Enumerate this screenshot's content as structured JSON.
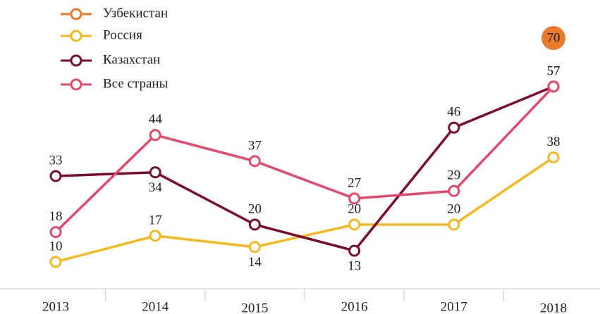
{
  "chart_data": {
    "type": "line",
    "categories": [
      "2013",
      "2014",
      "2015",
      "2016",
      "2017",
      "2018"
    ],
    "series": [
      {
        "name": "Узбекистан",
        "color": "#ec7a2c",
        "values": [
          null,
          null,
          null,
          null,
          null,
          70
        ]
      },
      {
        "name": "Россия",
        "color": "#f5b91e",
        "values": [
          10,
          17,
          14,
          20,
          20,
          38
        ]
      },
      {
        "name": "Казахстан",
        "color": "#7b0d2b",
        "values": [
          33,
          34,
          20,
          13,
          46,
          57
        ]
      },
      {
        "name": "Все страны",
        "color": "#e6486c",
        "values": [
          18,
          44,
          37,
          27,
          29,
          57
        ]
      }
    ],
    "ylim": [
      0,
      80
    ]
  }
}
